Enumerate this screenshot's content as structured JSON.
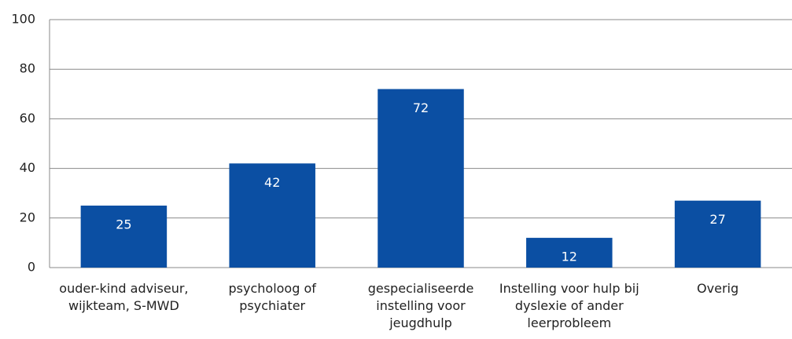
{
  "chart_data": {
    "type": "bar",
    "categories": [
      "ouder-kind adviseur, wijkteam, S-MWD",
      "psycholoog of psychiater",
      "gespecialiseerde instelling voor jeugdhulp",
      "Instelling voor hulp bij dyslexie of ander leerprobleem",
      "Overig"
    ],
    "values": [
      25,
      42,
      72,
      12,
      27
    ],
    "color": "#0b4fa3",
    "ylim": [
      0,
      100
    ],
    "yticks": [
      0,
      20,
      40,
      60,
      80,
      100
    ],
    "grid": true
  }
}
